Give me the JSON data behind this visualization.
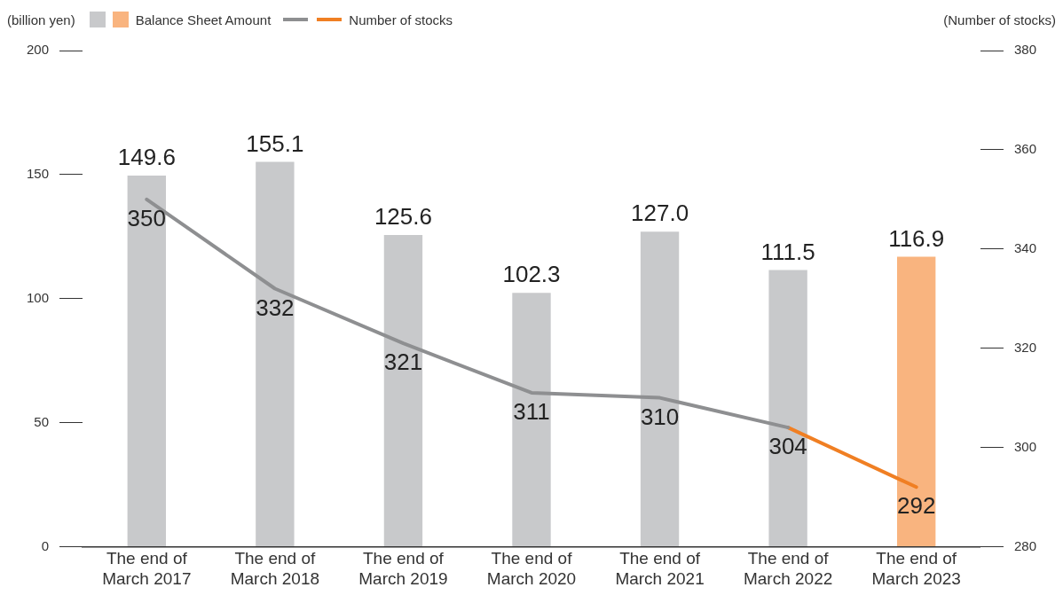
{
  "chart_data": {
    "type": "bar",
    "ylabel": "(billion yen)",
    "y2label": "(Number of stocks)",
    "legend": "top left",
    "categories": [
      "The end of March 2017",
      "The end of March 2018",
      "The end of March 2019",
      "The end of March 2020",
      "The end of March 2021",
      "The end of March 2022",
      "The end of March 2023"
    ],
    "series": [
      {
        "name": "Balance Sheet Amount",
        "colors": [
          "#c8c9cb",
          "#c8c9cb",
          "#c8c9cb",
          "#c8c9cb",
          "#c8c9cb",
          "#c8c9cb",
          "#f9b47f"
        ],
        "values": [
          149.6,
          155.1,
          125.6,
          102.3,
          127.0,
          111.5,
          116.9
        ],
        "value_labels": [
          "149.6",
          "155.1",
          "125.6",
          "102.3",
          "127.0",
          "111.5",
          "116.9"
        ]
      },
      {
        "name": "Number of stocks",
        "type": "line",
        "axis": "y2",
        "marker": "none",
        "color": "#8e8f91",
        "values": [
          350,
          332,
          321,
          311,
          310,
          304,
          null
        ],
        "value_labels": [
          "350",
          "332",
          "321",
          "311",
          "310",
          "304",
          null
        ]
      },
      {
        "type": "line",
        "axis": "y2",
        "marker": "none",
        "color": "#f07f23",
        "values": [
          null,
          null,
          null,
          null,
          null,
          304,
          292
        ],
        "value_labels": [
          null,
          null,
          null,
          null,
          null,
          null,
          "292"
        ]
      }
    ],
    "ylim": [
      0,
      200
    ],
    "yticks": [
      0,
      50,
      100,
      150,
      200
    ],
    "y2lim": [
      280,
      380
    ],
    "y2ticks": [
      280,
      300,
      320,
      340,
      360,
      380
    ],
    "grid": false
  }
}
